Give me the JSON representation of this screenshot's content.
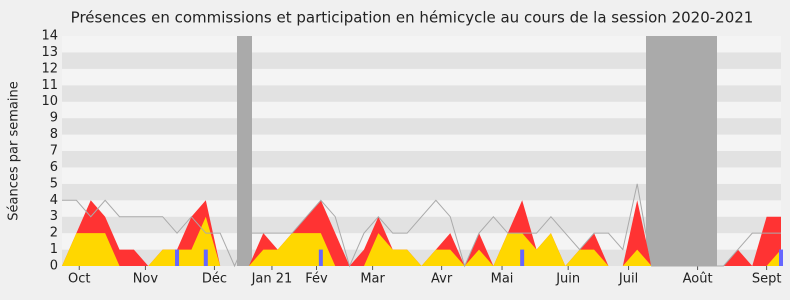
{
  "chart_data": {
    "type": "area",
    "title": "Présences en commissions et participation en hémicycle au cours de la session 2020-2021",
    "y_label": "Séances par semaine",
    "x": [
      0,
      1,
      2,
      3,
      4,
      5,
      6,
      7,
      8,
      9,
      10,
      11,
      12,
      13,
      14,
      15,
      16,
      17,
      18,
      19,
      20,
      21,
      22,
      23,
      24,
      25,
      26,
      27,
      28,
      29,
      30,
      31,
      32,
      33,
      34,
      35,
      36,
      37,
      38,
      39,
      40,
      41,
      42,
      43,
      44,
      45,
      46,
      47,
      48,
      49,
      50
    ],
    "xlim": [
      0,
      50
    ],
    "xticks": [
      {
        "value": 1.2,
        "label": "Oct"
      },
      {
        "value": 5.8,
        "label": "Nov"
      },
      {
        "value": 10.6,
        "label": "Déc"
      },
      {
        "value": 14.6,
        "label": "Jan 21"
      },
      {
        "value": 17.7,
        "label": "Fév"
      },
      {
        "value": 21.6,
        "label": "Mar"
      },
      {
        "value": 26.4,
        "label": "Avr"
      },
      {
        "value": 30.6,
        "label": "Mai"
      },
      {
        "value": 35.2,
        "label": "Juin"
      },
      {
        "value": 39.4,
        "label": "Juil"
      },
      {
        "value": 44.2,
        "label": "Août"
      },
      {
        "value": 49,
        "label": "Sept"
      }
    ],
    "ylim": [
      0,
      14
    ],
    "yticks": [
      0,
      1,
      2,
      3,
      4,
      5,
      6,
      7,
      8,
      9,
      10,
      11,
      12,
      13,
      14
    ],
    "grid": true,
    "series": [
      {
        "style": "area",
        "color": "#ff3333",
        "values": [
          0,
          2,
          4,
          3,
          1,
          1,
          0,
          1,
          1,
          3,
          4,
          0,
          0,
          0,
          2,
          1,
          2,
          3,
          4,
          2,
          0,
          1,
          3,
          1,
          1,
          0,
          1,
          2,
          0,
          2,
          0,
          2,
          4,
          1,
          2,
          0,
          1,
          2,
          0,
          0,
          4,
          0,
          0,
          0,
          0,
          0,
          0,
          1,
          0,
          3,
          3
        ]
      },
      {
        "style": "area",
        "color": "#ffd700",
        "values": [
          0,
          2,
          2,
          2,
          0,
          0,
          0,
          1,
          1,
          1,
          3,
          0,
          0,
          0,
          1,
          1,
          2,
          2,
          2,
          0,
          0,
          0,
          2,
          1,
          1,
          0,
          1,
          1,
          0,
          1,
          0,
          2,
          2,
          1,
          2,
          0,
          1,
          1,
          0,
          0,
          1,
          0,
          0,
          0,
          0,
          0,
          0,
          0,
          0,
          0,
          1
        ]
      },
      {
        "style": "line",
        "color": "#aaaaaa",
        "values": [
          4,
          4,
          3,
          4,
          3,
          3,
          3,
          3,
          2,
          3,
          2,
          2,
          0,
          2,
          2,
          2,
          2,
          3,
          4,
          3,
          0,
          2,
          3,
          2,
          2,
          3,
          4,
          3,
          0,
          2,
          3,
          2,
          2,
          2,
          3,
          2,
          1,
          2,
          2,
          1,
          5,
          0,
          0,
          0,
          0,
          0,
          0,
          1,
          2,
          2,
          2
        ]
      },
      {
        "style": "bar",
        "color": "#6666ff",
        "values": [
          0,
          0,
          0,
          0,
          0,
          0,
          0,
          0,
          1,
          0,
          1,
          0,
          0,
          0,
          0,
          0,
          0,
          0,
          1,
          0,
          0,
          0,
          0,
          0,
          0,
          0,
          0,
          0,
          0,
          0,
          0,
          0,
          1,
          0,
          0,
          0,
          0,
          0,
          0,
          0,
          0,
          0,
          0,
          0,
          0,
          0,
          0,
          0,
          0,
          0,
          1
        ]
      }
    ]
  }
}
